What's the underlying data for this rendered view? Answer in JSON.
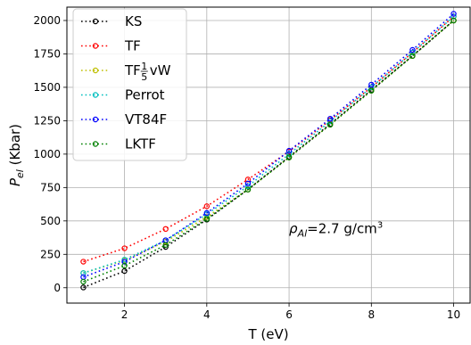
{
  "chart_data": {
    "type": "line",
    "xlabel": "T (eV)",
    "ylabel_main": "P",
    "ylabel_sub": "el",
    "ylabel_unit": " (Kbar)",
    "xlim": [
      0.6,
      10.4
    ],
    "ylim": [
      -115,
      2100
    ],
    "x_ticks": [
      2,
      4,
      6,
      8,
      10
    ],
    "y_ticks": [
      0,
      250,
      500,
      750,
      1000,
      1250,
      1500,
      1750,
      2000
    ],
    "grid": true,
    "legend_position": "top-left",
    "x": [
      1,
      2,
      3,
      4,
      5,
      6,
      7,
      8,
      9,
      10
    ],
    "series": [
      {
        "name": "KS",
        "color": "#000000",
        "values": [
          2,
          125,
          305,
          510,
          735,
          980,
          1225,
          1480,
          1735,
          2000
        ]
      },
      {
        "name": "TF",
        "color": "#ff0000",
        "values": [
          195,
          295,
          440,
          610,
          810,
          1020,
          1255,
          1500,
          1760,
          2030
        ]
      },
      {
        "name_prefix": "TF",
        "name_frac_num": "1",
        "name_frac_den": "5",
        "name_suffix": "vW",
        "color": "#bfbf00",
        "values": [
          110,
          205,
          345,
          530,
          735,
          975,
          1220,
          1475,
          1735,
          2000
        ]
      },
      {
        "name": "Perrot",
        "color": "#00bfbf",
        "values": [
          110,
          210,
          355,
          550,
          760,
          1000,
          1245,
          1500,
          1760,
          2030
        ]
      },
      {
        "name": "VT84F",
        "color": "#0000ff",
        "values": [
          80,
          195,
          355,
          560,
          780,
          1025,
          1265,
          1520,
          1780,
          2050
        ]
      },
      {
        "name": "LKTF",
        "color": "#008000",
        "values": [
          45,
          165,
          320,
          515,
          735,
          975,
          1220,
          1475,
          1735,
          2000
        ]
      }
    ],
    "annotation": {
      "rho": "ρ",
      "rho_sub": "Al",
      "rest": "=2.7 g/cm",
      "sup": "3",
      "at_x": 6.0,
      "at_y": 290
    }
  }
}
